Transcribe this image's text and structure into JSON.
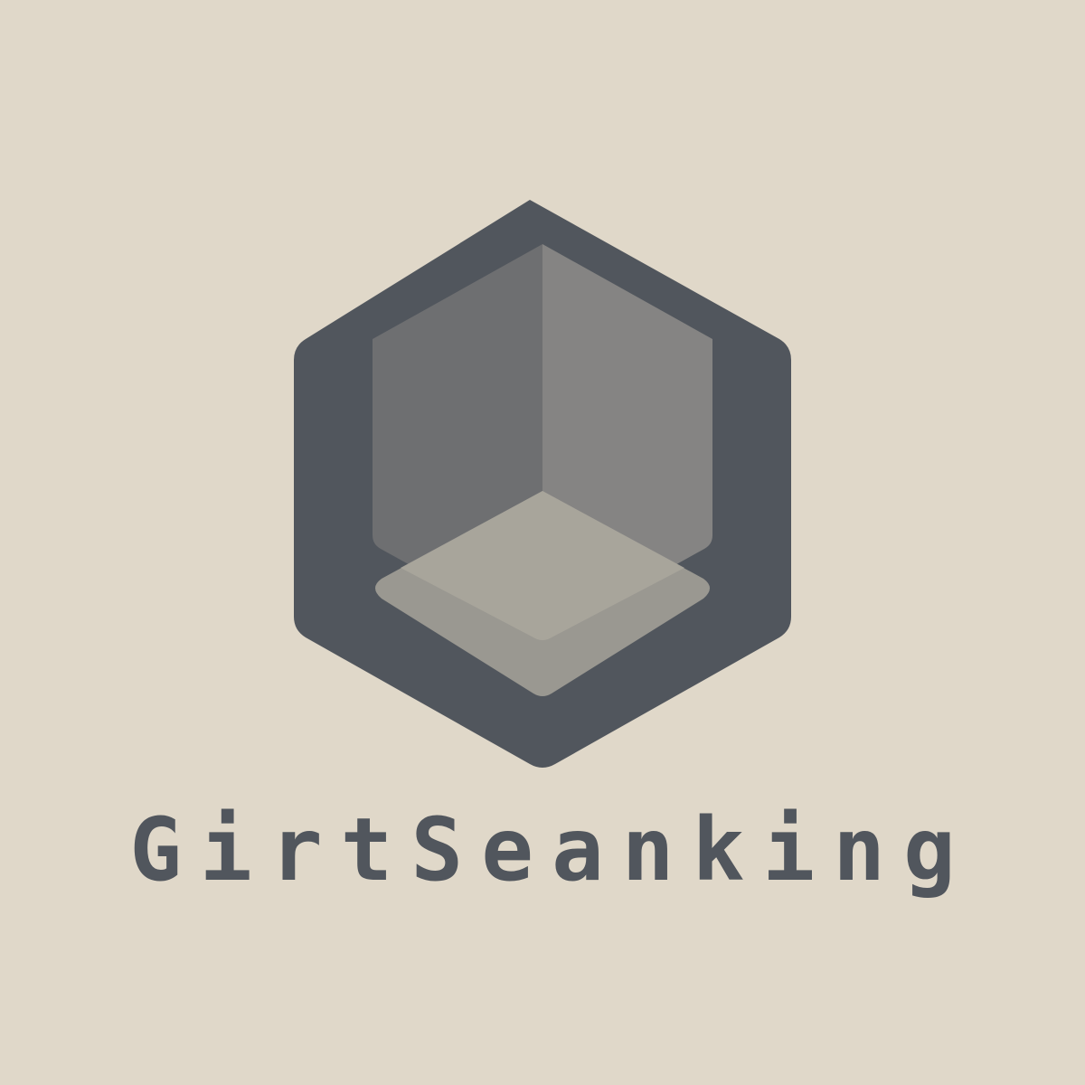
{
  "brand": {
    "name": "GirtSeanking"
  },
  "logo": {
    "icon": "hexagon-cube-icon",
    "colors": {
      "background": "#e0d8c9",
      "hexagon": "#51565d",
      "cube_left_face": "#6e6f71",
      "cube_right_face": "#858483",
      "cube_base": "#9a9891",
      "cube_floor": "#aaa69c"
    }
  }
}
